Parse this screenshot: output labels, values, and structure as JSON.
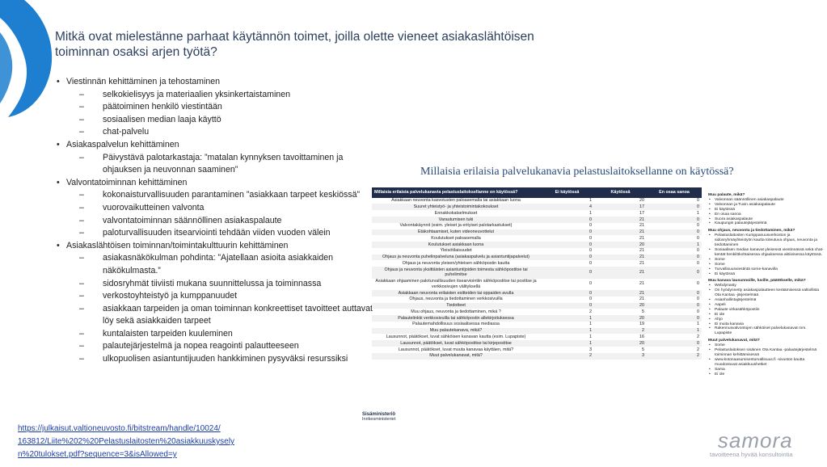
{
  "title": "Mitkä ovat mielestänne parhaat käytännön toimet, joilla olette vieneet asiakaslähtöisen toiminnan osaksi arjen työtä?",
  "bullets": [
    {
      "text": "Viestinnän kehittäminen ja tehostaminen",
      "children": [
        "selkokielisyys ja materiaalien yksinkertaistaminen",
        "päätoiminen henkilö viestintään",
        "sosiaalisen median laaja käyttö",
        "chat-palvelu"
      ]
    },
    {
      "text": "Asiakaspalvelun kehittäminen",
      "children": [
        "Päivystävä palotarkastaja: ”matalan kynnyksen tavoittaminen ja ohjauksen ja neuvonnan saaminen”"
      ]
    },
    {
      "text": "Valvontatoiminnan kehittäminen",
      "children": [
        "kokonaisturvallisuuden parantaminen ”asiakkaan tarpeet keskiössä”",
        "vuorovaikutteinen valvonta",
        "valvontatoiminnan säännöllinen asiakaspalaute",
        "paloturvallisuuden itsearviointi tehdään viiden vuoden välein"
      ]
    },
    {
      "text": "Asiakaslähtöisen toiminnan/toimintakulttuurin kehittäminen",
      "children": [
        "asiakasnäkökulman pohdinta: ”Ajatellaan asioita asiakkaiden näkökulmasta.”",
        "sidosryhmät tiiviisti mukana suunnittelussa ja toiminnassa",
        "verkostoyhteistyö ja kumppanuudet",
        "asiakkaan tarpeiden ja oman toiminnan konkreettiset tavoitteet auttavat löy sekä asiakkaiden tarpeet",
        "kuntalaisten tarpeiden kuuleminen",
        "palautejärjestelmä ja nopea reagointi palautteeseen",
        "ulkopuolisen asiantuntijuuden hankkiminen pysyväksi resurssiksi"
      ]
    }
  ],
  "table": {
    "title": "Millaisia erilaisia palvelukanavia pelastuslaitoksellanne on käytössä?",
    "headers": [
      "Millaisia erilaisia palvelukanavia pelastuslaitoksellanne on käytössä?",
      "Ei käytössä",
      "Käytössä",
      "En osaa sanoa"
    ],
    "rows": [
      [
        "Asiakkaan neuvonta kasvotusten paloasemalla tai asiakkaan luona",
        1,
        20,
        0
      ],
      [
        "Suuret yhteistyö- ja yhteistoimintakokoukset",
        4,
        17,
        0
      ],
      [
        "Ennakkokatselmukset",
        1,
        17,
        1
      ],
      [
        "Varautumisen tuki",
        0,
        21,
        0
      ],
      [
        "Valvontakäynnit (esim. yleiset ja erityiset palotarkastukset)",
        0,
        21,
        0
      ],
      [
        "Etäkohtaamiset, kuten videoneuvottelut",
        0,
        21,
        0
      ],
      [
        "Koulutukset paloasemalla",
        0,
        21,
        0
      ],
      [
        "Koulutukset asiakkaan luona",
        0,
        20,
        1
      ],
      [
        "Yleisötilaisuudet",
        0,
        21,
        0
      ],
      [
        "Ohjaus ja neuvonta puhelinpalveluna (asiakaspalvelu ja asiantuntijapalvelut)",
        0,
        21,
        0
      ],
      [
        "Ohjaus ja neuvonta yleisen/yhteisen sähköpostin kautta",
        0,
        21,
        0
      ],
      [
        "Ohjaus ja neuvonta yksittäisten asiantuntijoiden toimesta sähköpostitse tai puhelimitse",
        0,
        21,
        0
      ],
      [
        "Asiakkaan ohjaaminen paloturvallisuuden itsearviointiin sähköpostitse tai postitse ja verkkosivujen välityksellä",
        0,
        21,
        0
      ],
      [
        "Asiakkaan neuvonta erilaisten esitteiden tai oppaiden avulla",
        0,
        21,
        0
      ],
      [
        "Ohjaus, neuvonta ja tiedottaminen verkkosivuilla",
        0,
        21,
        0
      ],
      [
        "Tiedotteet",
        0,
        20,
        0
      ],
      [
        "Muu ohjaus, neuvonta ja tiedottaminen, mikä ?",
        2,
        5,
        0
      ],
      [
        "Palautelinkki verkkosivuilla tai sähköpostin allekirjoituksessa",
        1,
        20,
        0
      ],
      [
        "Palautemahdollisuus sosiaalisessa mediassa",
        1,
        19,
        1
      ],
      [
        "Muu palautekanava, mikä?",
        1,
        2,
        1
      ],
      [
        "Lausunnot, päätökset, luvat sähköisen kanavan kautta (esim. Lupapiste)",
        1,
        16,
        2
      ],
      [
        "Lausunnot, päätökset, luvat sähköpostitse tai kirjepostitse",
        1,
        20,
        0
      ],
      [
        "Lausunnot, päätökset, luvat muuta kanavaa käyttäen, mitä?",
        3,
        5,
        2
      ],
      [
        "Muut palvelukanavat, mitä?",
        2,
        3,
        2
      ]
    ]
  },
  "notes": [
    {
      "heading": "Muu palaute, mikä?",
      "items": [
        "Valvonnan säännöllinen asiakaspalaute",
        "Valvonnan ja Tuvin asiakaspalaute",
        "Ei käytössä",
        "En osaa sanoa",
        "Suora asiakaspalaute",
        "Kaupungin palautejärjestelmä"
      ]
    },
    {
      "heading": "Muu ohjaus, neuvonta ja tiedottaminen, mikä?",
      "items": [
        "Pelastuslaitosten Kumppanuusverkoston ja sidosryhmäyhteistyön kautta toteutuva ohjaus, neuvonta ja tiedottaminen",
        "Sosiaalisen median kanavat yleisessä viestinnässä sekä chat-kentät henkilökohtaisessa ohjauksessa aktiivisessa käytössä.",
        "Some",
        "Some",
        "Turvallisuusviestintä some-kanavilla",
        "Ei käytössä"
      ]
    },
    {
      "heading": "Muu kanava lausunnoille, luville, päätökselle, mikä?",
      "items": [
        "Webdynasty",
        "On hyödynnetty asiakaspalautteen keräämisessä valtiollista Ota Kantaa -järjestelmää",
        "Asianhallintajärjestelmä",
        "Aapeli",
        "Palaute virkasähköpostiin",
        "Ei ole",
        "Ahjo",
        "Ei muita kanavia",
        "Rakennusvalvontojen sähköiset palvelukanavat mm. Lupapiste"
      ]
    },
    {
      "heading": "Muut palvelukanavat, mitä?",
      "items": [
        "Some",
        "Pelastuslaitoksen sisäinen Ota Kantaa -palautejärjestelmä toiminnan kehittämisessä",
        "www.kotonaasumisenturvallisuus.fi -sivuston kautta muodostuvat asiakkuushetket",
        "Sama",
        "Ei ole"
      ]
    }
  ],
  "source_link": [
    "https://julkaisut.valtioneuvosto.fi/bitstream/handle/10024/",
    "163812/Liite%202%20Pelastuslaitosten%20asiakkuuskysely",
    "n%20tulokset.pdf?sequence=3&isAllowed=y"
  ],
  "logos": {
    "ministry": {
      "name": "Sisäministeriö",
      "sub": "Inrikesministeriet"
    },
    "samora": {
      "name": "samora",
      "tagline": "tavoitteena hyvää konsultointia"
    }
  }
}
